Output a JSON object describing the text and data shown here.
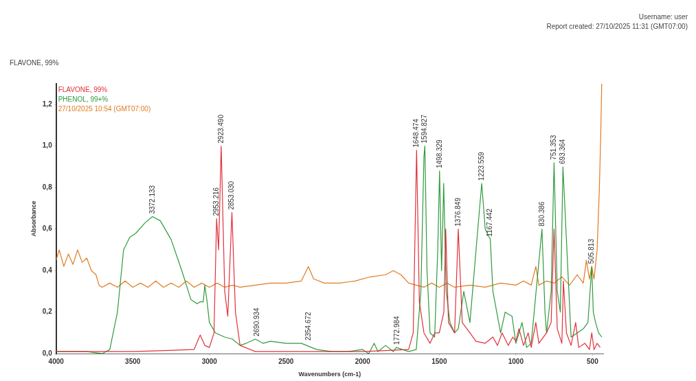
{
  "chart_data": {
    "type": "line",
    "title": "FLAVONE, 99%",
    "xlabel": "Wavenumbers (cm-1)",
    "ylabel": "Absorbance",
    "xlim": [
      4000,
      430
    ],
    "xticks": [
      4000,
      3500,
      3000,
      2500,
      2000,
      1500,
      1000,
      500
    ],
    "ylim": [
      0,
      1.3
    ],
    "yticks": [
      {
        "value": 0,
        "label": "0,0"
      },
      {
        "value": 0.2,
        "label": "0,2"
      },
      {
        "value": 0.4,
        "label": "0,4"
      },
      {
        "value": 0.6,
        "label": "0,6"
      },
      {
        "value": 0.8,
        "label": "0,8"
      },
      {
        "value": 1,
        "label": "1,0"
      },
      {
        "value": 1.2,
        "label": "1,2"
      }
    ],
    "grid": false,
    "legend": "top left",
    "marker": "none",
    "line_style": "solid",
    "series": [
      {
        "name": "FLAVONE, 99%",
        "color": "#e0303a",
        "x": [
          4000,
          3500,
          3100,
          3060,
          3030,
          3000,
          2970,
          2953,
          2940,
          2923,
          2900,
          2880,
          2853,
          2830,
          2800,
          2700,
          2000,
          1700,
          1670,
          1648,
          1630,
          1600,
          1560,
          1530,
          1500,
          1470,
          1458,
          1440,
          1400,
          1376,
          1350,
          1300,
          1260,
          1200,
          1150,
          1120,
          1090,
          1050,
          1020,
          1000,
          980,
          950,
          920,
          900,
          870,
          850,
          800,
          770,
          751,
          730,
          700,
          690,
          670,
          640,
          610,
          590,
          550,
          520,
          505,
          490,
          470,
          450
        ],
        "values": [
          0.01,
          0.01,
          0.02,
          0.09,
          0.04,
          0.03,
          0.1,
          0.65,
          0.5,
          1.0,
          0.3,
          0.18,
          0.68,
          0.2,
          0.04,
          0.01,
          0.01,
          0.02,
          0.1,
          0.98,
          0.25,
          0.1,
          0.05,
          0.1,
          0.1,
          0.2,
          0.6,
          0.15,
          0.1,
          0.6,
          0.15,
          0.1,
          0.06,
          0.05,
          0.08,
          0.04,
          0.1,
          0.04,
          0.08,
          0.06,
          0.12,
          0.04,
          0.1,
          0.03,
          0.15,
          0.05,
          0.1,
          0.15,
          0.6,
          0.12,
          0.05,
          0.35,
          0.1,
          0.04,
          0.15,
          0.03,
          0.05,
          0.02,
          0.1,
          0.02,
          0.05,
          0.03
        ]
      },
      {
        "name": "PHENOL, 99+%",
        "color": "#2e9a3c",
        "x": [
          4000,
          3800,
          3700,
          3650,
          3600,
          3560,
          3520,
          3480,
          3420,
          3372,
          3320,
          3250,
          3180,
          3120,
          3080,
          3060,
          3040,
          3030,
          3015,
          3000,
          2960,
          2900,
          2850,
          2800,
          2760,
          2700,
          2650,
          2600,
          2500,
          2400,
          2300,
          2200,
          2100,
          2000,
          1960,
          1925,
          1900,
          1850,
          1800,
          1780,
          1700,
          1650,
          1620,
          1600,
          1594,
          1580,
          1560,
          1530,
          1510,
          1498,
          1485,
          1471,
          1455,
          1430,
          1400,
          1376,
          1340,
          1300,
          1260,
          1223,
          1200,
          1167,
          1150,
          1100,
          1070,
          1025,
          1000,
          960,
          930,
          900,
          830,
          810,
          800,
          770,
          751,
          730,
          710,
          693,
          640,
          600,
          560,
          530,
          505,
          495,
          480,
          460,
          440
        ],
        "values": [
          0.01,
          0.01,
          0,
          0.02,
          0.2,
          0.5,
          0.56,
          0.58,
          0.63,
          0.66,
          0.64,
          0.55,
          0.4,
          0.26,
          0.24,
          0.25,
          0.25,
          0.33,
          0.25,
          0.15,
          0.1,
          0.08,
          0.07,
          0.04,
          0.05,
          0.07,
          0.05,
          0.06,
          0.05,
          0.05,
          0.02,
          0.01,
          0.01,
          0.02,
          0,
          0.05,
          0.01,
          0.04,
          0.01,
          0.03,
          0.01,
          0.02,
          0.3,
          0.95,
          1.0,
          0.4,
          0.1,
          0.08,
          0.5,
          0.88,
          0.4,
          0.82,
          0.3,
          0.15,
          0.1,
          0.12,
          0.3,
          0.15,
          0.5,
          0.82,
          0.6,
          0.55,
          0.3,
          0.1,
          0.2,
          0.18,
          0.05,
          0.15,
          0.03,
          0.05,
          0.6,
          0.2,
          0.1,
          0.3,
          0.92,
          0.3,
          0.2,
          0.9,
          0.08,
          0.1,
          0.12,
          0.15,
          0.42,
          0.2,
          0.15,
          0.1,
          0.08
        ]
      },
      {
        "name": "27/10/2025 10:54 (GMT07:00)",
        "color": "#e07b22",
        "x": [
          4000,
          3980,
          3950,
          3920,
          3890,
          3860,
          3830,
          3800,
          3770,
          3740,
          3720,
          3700,
          3650,
          3600,
          3550,
          3500,
          3450,
          3400,
          3350,
          3300,
          3250,
          3200,
          3150,
          3100,
          3050,
          3000,
          2950,
          2900,
          2850,
          2800,
          2700,
          2600,
          2500,
          2400,
          2354,
          2320,
          2250,
          2150,
          2050,
          1950,
          1850,
          1800,
          1750,
          1700,
          1650,
          1600,
          1550,
          1500,
          1450,
          1400,
          1300,
          1200,
          1100,
          1000,
          950,
          900,
          870,
          850,
          800,
          750,
          700,
          650,
          600,
          560,
          540,
          520,
          505,
          490,
          470,
          455,
          445,
          440
        ],
        "values": [
          0.45,
          0.5,
          0.42,
          0.48,
          0.43,
          0.5,
          0.44,
          0.46,
          0.4,
          0.38,
          0.33,
          0.32,
          0.34,
          0.32,
          0.35,
          0.32,
          0.34,
          0.32,
          0.35,
          0.32,
          0.34,
          0.32,
          0.35,
          0.32,
          0.34,
          0.32,
          0.34,
          0.32,
          0.33,
          0.32,
          0.33,
          0.34,
          0.34,
          0.35,
          0.42,
          0.36,
          0.34,
          0.34,
          0.35,
          0.37,
          0.38,
          0.4,
          0.38,
          0.34,
          0.33,
          0.32,
          0.34,
          0.32,
          0.34,
          0.32,
          0.33,
          0.32,
          0.34,
          0.33,
          0.35,
          0.33,
          0.42,
          0.33,
          0.35,
          0.34,
          0.37,
          0.33,
          0.38,
          0.34,
          0.45,
          0.36,
          0.42,
          0.36,
          0.5,
          0.8,
          1.1,
          1.3
        ]
      }
    ],
    "annotations": [
      "Username: user",
      "Report created: 27/10/2025 11:31 (GMT07:00)",
      {
        "text": "3372.133",
        "x": 3372,
        "y": 0.66
      },
      {
        "text": "2953.216",
        "x": 2953,
        "y": 0.65
      },
      {
        "text": "2923.490",
        "x": 2923,
        "y": 1.0
      },
      {
        "text": "2853.030",
        "x": 2853,
        "y": 0.68
      },
      {
        "text": "2690.934",
        "x": 2690,
        "y": 0.07
      },
      {
        "text": "2354.672",
        "x": 2354,
        "y": 0.05
      },
      {
        "text": "1772.984",
        "x": 1772,
        "y": 0.03
      },
      {
        "text": "1648.474",
        "x": 1648,
        "y": 0.98
      },
      {
        "text": "1594.827",
        "x": 1594,
        "y": 1.0
      },
      {
        "text": "1498.329",
        "x": 1498,
        "y": 0.88
      },
      {
        "text": "1376.849",
        "x": 1376,
        "y": 0.6
      },
      {
        "text": "1223.559",
        "x": 1223,
        "y": 0.82
      },
      {
        "text": "1167.442",
        "x": 1167,
        "y": 0.55
      },
      {
        "text": "830.386",
        "x": 830,
        "y": 0.6
      },
      {
        "text": "751.353",
        "x": 751,
        "y": 0.92
      },
      {
        "text": "693.364",
        "x": 693,
        "y": 0.9
      },
      {
        "text": "505.813",
        "x": 505,
        "y": 0.42
      }
    ]
  }
}
